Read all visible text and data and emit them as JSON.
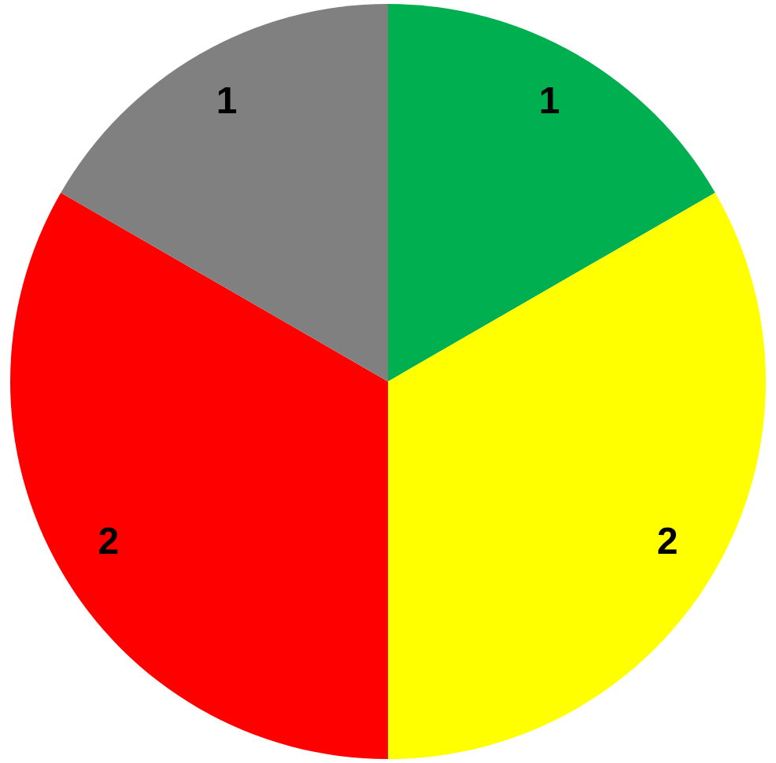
{
  "chart_data": {
    "type": "pie",
    "categories": [
      null,
      null,
      null,
      null
    ],
    "values": [
      1,
      2,
      2,
      1
    ],
    "colors": [
      "#00b050",
      "#ffff00",
      "#ff0000",
      "#808080"
    ],
    "data_labels": true
  }
}
